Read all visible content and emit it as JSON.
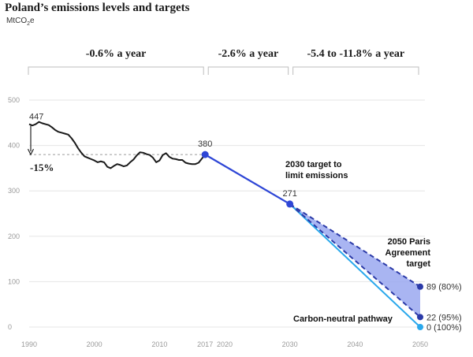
{
  "chart_data": {
    "type": "line",
    "title": "Poland’s emissions levels and targets",
    "unit_prefix": "MtCO",
    "unit_sub": "2",
    "unit_suffix": "e",
    "ylim": [
      0,
      500
    ],
    "xlim": [
      1990,
      2050
    ],
    "y_ticks": [
      "500",
      "400",
      "300",
      "200",
      "100",
      "0"
    ],
    "x_ticks": [
      {
        "value": 1990,
        "label": "1990"
      },
      {
        "value": 2000,
        "label": "2000"
      },
      {
        "value": 2010,
        "label": "2010"
      },
      {
        "value": 2017,
        "label": "2017"
      },
      {
        "value": 2020,
        "label": "2020"
      },
      {
        "value": 2030,
        "label": "2030"
      },
      {
        "value": 2040,
        "label": "2040"
      },
      {
        "value": 2050,
        "label": "2050"
      }
    ],
    "segments": [
      {
        "label": "-0.6% a year",
        "from": 1990,
        "to": 2017
      },
      {
        "label": "-2.6% a year",
        "from": 2017,
        "to": 2030
      },
      {
        "label": "-5.4 to -11.8% a year",
        "from": 2030,
        "to": 2050
      }
    ],
    "series": [
      {
        "type": "historical",
        "color": "#1a1a1a",
        "x": [
          1990,
          1990.5,
          1991,
          1991.5,
          1992,
          1992.5,
          1993,
          1993.5,
          1994,
          1994.5,
          1995,
          1995.5,
          1996,
          1996.5,
          1997,
          1997.5,
          1998,
          1998.5,
          1999,
          1999.5,
          2000,
          2000.5,
          2001,
          2001.5,
          2002,
          2002.5,
          2003,
          2003.5,
          2004,
          2004.5,
          2005,
          2005.5,
          2006,
          2006.5,
          2007,
          2007.5,
          2008,
          2008.5,
          2009,
          2009.5,
          2010,
          2010.5,
          2011,
          2011.5,
          2012,
          2012.5,
          2013,
          2013.5,
          2014,
          2014.5,
          2015,
          2015.5,
          2016,
          2016.5,
          2017
        ],
        "y": [
          447,
          444,
          447,
          452,
          449,
          447,
          445,
          440,
          434,
          430,
          428,
          426,
          424,
          416,
          406,
          394,
          384,
          376,
          373,
          370,
          367,
          363,
          365,
          363,
          353,
          350,
          355,
          359,
          357,
          354,
          356,
          363,
          369,
          378,
          385,
          384,
          381,
          379,
          373,
          363,
          367,
          379,
          383,
          375,
          371,
          370,
          368,
          368,
          362,
          360,
          359,
          359,
          362,
          371,
          380
        ]
      },
      {
        "type": "target-2030",
        "color": "#2e46d6",
        "x": [
          2017,
          2030
        ],
        "y": [
          380,
          271
        ]
      },
      {
        "type": "paris-upper",
        "color": "#2b3aa8",
        "x": [
          2030,
          2050
        ],
        "y": [
          271,
          89
        ]
      },
      {
        "type": "paris-lower",
        "color": "#2b3aa8",
        "x": [
          2030,
          2050
        ],
        "y": [
          271,
          22
        ]
      },
      {
        "type": "carbon-neutral",
        "color": "#2aa8ec",
        "x": [
          2030,
          2050
        ],
        "y": [
          271,
          0
        ]
      }
    ],
    "band_color": "#9aa8f0",
    "baseline": {
      "value": 380
    },
    "annotations": {
      "start_value": "447",
      "drop": "-15%",
      "v2017": "380",
      "v2030": "271",
      "target2030_line1": "2030 target to",
      "target2030_line2": "limit emissions",
      "paris_line1": "2050 Paris",
      "paris_line2": "Agreement",
      "paris_line3": "target",
      "v89": "89 (80%)",
      "v22": "22 (95%)",
      "v0": "0 (100%)",
      "neutral": "Carbon-neutral pathway"
    }
  }
}
